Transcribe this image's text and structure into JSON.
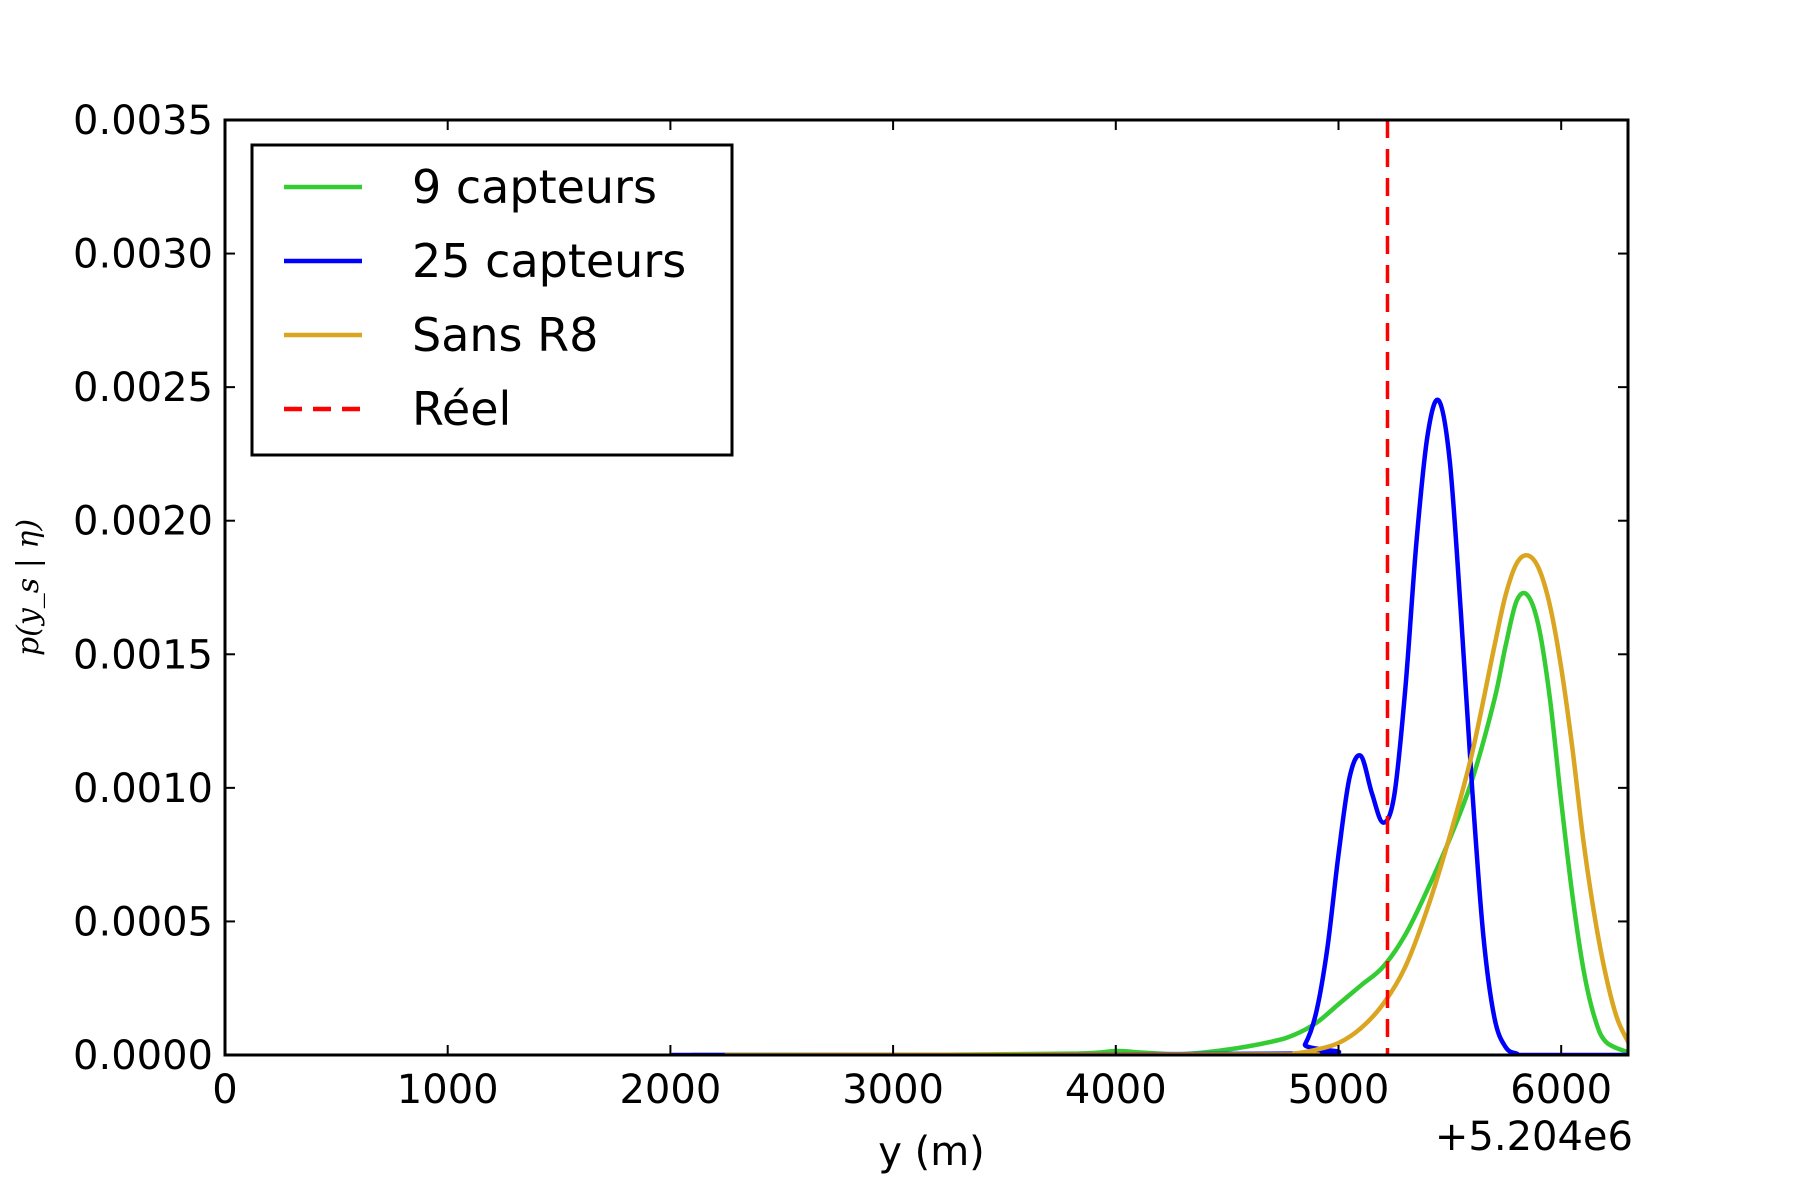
{
  "chart_data": {
    "type": "line",
    "title": "",
    "xlabel": "y (m)",
    "ylabel": "p(y_s | η)",
    "x_offset_label": "+5.204e6",
    "xlim": [
      0,
      6300
    ],
    "ylim": [
      0,
      0.0035
    ],
    "xticks": [
      0,
      1000,
      2000,
      3000,
      4000,
      5000,
      6000
    ],
    "xtick_labels": [
      "0",
      "1000",
      "2000",
      "3000",
      "4000",
      "5000",
      "6000"
    ],
    "yticks": [
      0,
      0.0005,
      0.001,
      0.0015,
      0.002,
      0.0025,
      0.003,
      0.0035
    ],
    "ytick_labels": [
      "0.0000",
      "0.0005",
      "0.0010",
      "0.0015",
      "0.0020",
      "0.0025",
      "0.0030",
      "0.0035"
    ],
    "grid": false,
    "legend_position": "top-left",
    "series": [
      {
        "name": "9 capteurs",
        "color": "#33cc33",
        "style": "solid",
        "x": [
          2100,
          3000,
          3800,
          4000,
          4100,
          4300,
          4500,
          4700,
          4800,
          4900,
          5000,
          5100,
          5200,
          5300,
          5400,
          5500,
          5600,
          5700,
          5750,
          5800,
          5850,
          5900,
          5950,
          6000,
          6050,
          6100,
          6150,
          6200,
          6300
        ],
        "y": [
          0,
          0,
          5e-06,
          1.5e-05,
          1e-05,
          3e-06,
          2e-05,
          5e-05,
          7.5e-05,
          0.00012,
          0.00019,
          0.00026,
          0.00033,
          0.00045,
          0.00062,
          0.00081,
          0.00103,
          0.00133,
          0.00153,
          0.0017,
          0.00172,
          0.0016,
          0.00133,
          0.00095,
          0.0006,
          0.00032,
          0.00014,
          5e-05,
          1e-05
        ]
      },
      {
        "name": "25 capteurs",
        "color": "#0000ff",
        "style": "solid",
        "x": [
          2100,
          2250,
          4800,
          4850,
          4900,
          4950,
          5000,
          5050,
          5100,
          5150,
          5200,
          5250,
          5300,
          5350,
          5400,
          5450,
          5500,
          5550,
          5600,
          5650,
          5700,
          5750,
          5800,
          5850,
          6300
        ],
        "y": [
          0,
          0,
          5e-06,
          4e-05,
          0.00016,
          0.0004,
          0.00075,
          0.00104,
          0.00112,
          0.00098,
          0.00087,
          0.00097,
          0.00137,
          0.00192,
          0.00232,
          0.00245,
          0.00222,
          0.00165,
          0.001,
          0.00045,
          0.00014,
          3e-05,
          5e-06,
          0,
          0
        ]
      },
      {
        "name": "Sans R8",
        "color": "#daa520",
        "style": "solid",
        "x": [
          2250,
          4700,
          4800,
          4900,
          5000,
          5100,
          5200,
          5300,
          5400,
          5500,
          5600,
          5700,
          5750,
          5800,
          5850,
          5900,
          5950,
          6000,
          6050,
          6100,
          6150,
          6200,
          6250,
          6300
        ],
        "y": [
          0,
          2e-06,
          5e-06,
          2e-05,
          4.5e-05,
          0.0001,
          0.00019,
          0.00033,
          0.00055,
          0.00082,
          0.00113,
          0.00153,
          0.00172,
          0.00184,
          0.00187,
          0.00182,
          0.00168,
          0.00145,
          0.00115,
          0.0008,
          0.00052,
          0.0003,
          0.00014,
          5e-05
        ]
      }
    ],
    "reference_line": {
      "name": "Réel",
      "color": "#ff0000",
      "style": "dashed",
      "x": 5220
    }
  }
}
